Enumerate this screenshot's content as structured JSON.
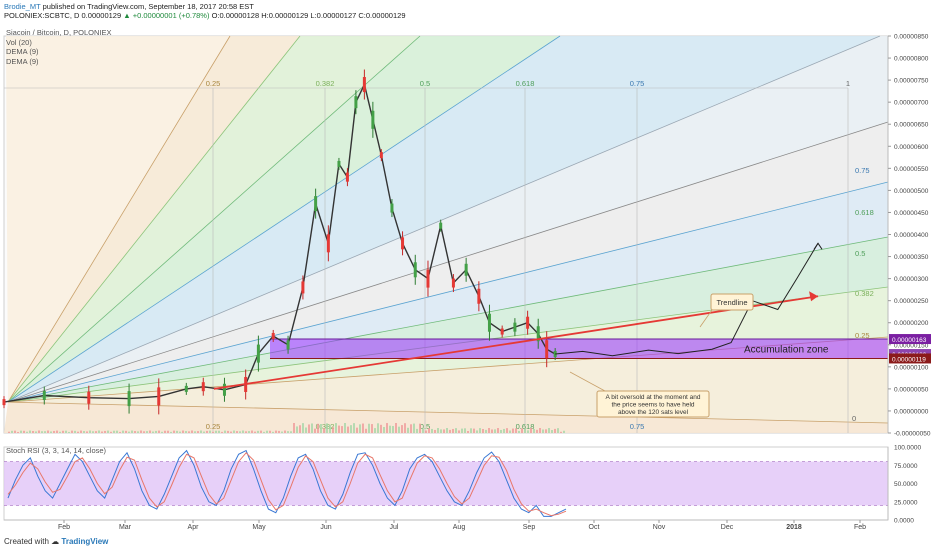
{
  "header": {
    "author": "Brodie_MT",
    "published": " published on TradingView.com, September 18, 2017 20:58 EST",
    "symbol_line_pre": "POLONIEX:SCBTC, D  0.00000129 ",
    "change": "▲ +0.00000001 (+0.78%)",
    "symbol_line_post": " O:0.00000128 H:0.00000129 L:0.00000127 C:0.00000129"
  },
  "legend": {
    "title": "Siacoin / Bitcoin, D, POLONIEX",
    "items": [
      "Vol (20)",
      "DEMA (9)",
      "DEMA (9)"
    ]
  },
  "rsi": {
    "label": "Stoch RSI (3, 3, 14, 14, close)"
  },
  "footer": {
    "created": "Created with",
    "brand": "TradingView"
  },
  "chart_data": {
    "type": "line",
    "ylim": [
      0.0,
      8.5e-06
    ],
    "y_ticks": [
      "0.00000850",
      "0.00000800",
      "0.00000750",
      "0.00000700",
      "0.00000650",
      "0.00000600",
      "0.00000550",
      "0.00000500",
      "0.00000450",
      "0.00000400",
      "0.00000350",
      "0.00000300",
      "0.00000250",
      "0.00000200",
      "0.00000150",
      "0.00000100",
      "0.00000050",
      "0.00000000",
      "-0.00000050"
    ],
    "x_ticks": [
      "Feb",
      "Mar",
      "Apr",
      "May",
      "Jun",
      "Jul",
      "Aug",
      "Sep",
      "Oct",
      "Nov",
      "Dec",
      "2018",
      "Feb"
    ],
    "price_labels": [
      {
        "text": "0.00000163",
        "color": "#7b1fa2",
        "y": 1.63e-06
      },
      {
        "text": "0.00000129",
        "color": "#8e44ad",
        "y": 1.29e-06
      },
      {
        "text": "0.00000119",
        "color": "#8b1a1a",
        "y": 1.19e-06
      }
    ],
    "fib_levels": [
      "0.25",
      "0.382",
      "0.5",
      "0.618",
      "0.75",
      "1"
    ],
    "fib_fan_right": [
      "0.75",
      "0.618",
      "0.5",
      "0.382",
      "0.25",
      "0"
    ],
    "zone": {
      "label": "Accumulation zone",
      "top": 1.63e-06,
      "bottom": 1.19e-06
    },
    "annotations": {
      "trendline": "Trendline",
      "oversold": "A bit oversold at the moment and the price seems to have held above the 120 sats level"
    },
    "price_path": [
      [
        "2017-01-01",
        2e-07
      ],
      [
        "2017-01-20",
        3.5e-07
      ],
      [
        "2017-02-10",
        3e-07
      ],
      [
        "2017-03-01",
        2.8e-07
      ],
      [
        "2017-03-15",
        3.3e-07
      ],
      [
        "2017-03-28",
        5e-07
      ],
      [
        "2017-04-05",
        5.5e-07
      ],
      [
        "2017-04-15",
        4.8e-07
      ],
      [
        "2017-04-25",
        6e-07
      ],
      [
        "2017-05-01",
        1.3e-06
      ],
      [
        "2017-05-08",
        1.7e-06
      ],
      [
        "2017-05-15",
        1.5e-06
      ],
      [
        "2017-05-22",
        2.8e-06
      ],
      [
        "2017-05-28",
        4.7e-06
      ],
      [
        "2017-06-03",
        3.8e-06
      ],
      [
        "2017-06-08",
        5.6e-06
      ],
      [
        "2017-06-12",
        5.3e-06
      ],
      [
        "2017-06-16",
        7e-06
      ],
      [
        "2017-06-20",
        7.4e-06
      ],
      [
        "2017-06-24",
        6.6e-06
      ],
      [
        "2017-06-28",
        5.8e-06
      ],
      [
        "2017-07-03",
        4.6e-06
      ],
      [
        "2017-07-08",
        3.8e-06
      ],
      [
        "2017-07-14",
        3.2e-06
      ],
      [
        "2017-07-20",
        3e-06
      ],
      [
        "2017-07-26",
        4.2e-06
      ],
      [
        "2017-08-01",
        2.9e-06
      ],
      [
        "2017-08-07",
        3.2e-06
      ],
      [
        "2017-08-13",
        2.6e-06
      ],
      [
        "2017-08-18",
        2e-06
      ],
      [
        "2017-08-24",
        1.8e-06
      ],
      [
        "2017-08-30",
        1.9e-06
      ],
      [
        "2017-09-05",
        2e-06
      ],
      [
        "2017-09-10",
        1.75e-06
      ],
      [
        "2017-09-14",
        1.4e-06
      ],
      [
        "2017-09-18",
        1.29e-06
      ]
    ],
    "projection_path": [
      [
        "2017-09-18",
        1.29e-06
      ],
      [
        "2017-10-01",
        1.35e-06
      ],
      [
        "2017-10-15",
        1.25e-06
      ],
      [
        "2017-11-01",
        1.38e-06
      ],
      [
        "2017-11-15",
        1.3e-06
      ],
      [
        "2017-12-01",
        1.4e-06
      ],
      [
        "2017-12-10",
        1.55e-06
      ],
      [
        "2017-12-20",
        2.5e-06
      ],
      [
        "2018-01-01",
        2.3e-06
      ],
      [
        "2018-01-10",
        3e-06
      ],
      [
        "2018-01-20",
        3.8e-06
      ]
    ],
    "trendline": [
      [
        "2017-04-10",
        5e-07
      ],
      [
        "2018-01-20",
        2.6e-06
      ]
    ],
    "stoch_rsi": {
      "ylim": [
        0,
        100
      ],
      "ticks": [
        "100.0000",
        "75.0000",
        "50.0000",
        "25.0000",
        "0.0000"
      ],
      "band": [
        20,
        80
      ],
      "k": [
        30,
        55,
        75,
        85,
        60,
        40,
        30,
        50,
        70,
        90,
        80,
        60,
        40,
        30,
        55,
        80,
        92,
        70,
        40,
        20,
        15,
        35,
        60,
        85,
        95,
        75,
        45,
        25,
        20,
        40,
        70,
        90,
        95,
        70,
        40,
        15,
        10,
        30,
        60,
        85,
        90,
        70,
        40,
        20,
        15,
        35,
        65,
        90,
        92,
        75,
        50,
        30,
        20,
        40,
        70,
        85,
        90,
        80,
        60,
        40,
        25,
        20,
        40,
        65,
        85,
        93,
        80,
        55,
        30,
        15,
        10,
        20,
        5,
        5,
        10,
        15
      ],
      "d": [
        35,
        48,
        65,
        78,
        70,
        52,
        38,
        42,
        60,
        80,
        85,
        70,
        50,
        36,
        45,
        68,
        86,
        82,
        55,
        30,
        18,
        25,
        48,
        72,
        90,
        85,
        60,
        35,
        22,
        30,
        55,
        80,
        92,
        82,
        55,
        28,
        14,
        20,
        45,
        72,
        88,
        80,
        55,
        30,
        18,
        25,
        50,
        78,
        90,
        85,
        62,
        40,
        25,
        30,
        55,
        78,
        88,
        85,
        70,
        50,
        32,
        22,
        30,
        52,
        75,
        88,
        86,
        68,
        42,
        22,
        12,
        15,
        10,
        6,
        8,
        12
      ]
    }
  }
}
